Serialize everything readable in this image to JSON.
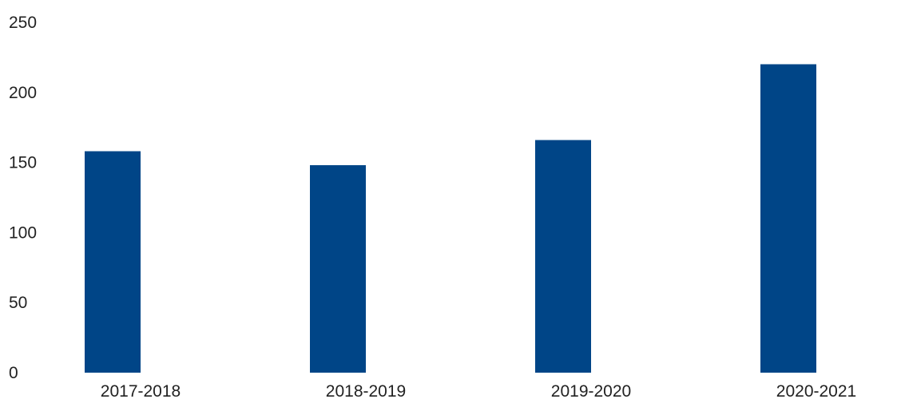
{
  "chart_data": {
    "type": "bar",
    "title": "",
    "xlabel": "",
    "ylabel": "",
    "categories": [
      "2017-2018",
      "2018-2019",
      "2019-2020",
      "2020-2021"
    ],
    "values": [
      158,
      148,
      166,
      220
    ],
    "ylim": [
      0,
      250
    ],
    "yticks": [
      0,
      50,
      100,
      150,
      200,
      250
    ],
    "grid": false,
    "legend": "none",
    "bar_color": "#004587"
  }
}
